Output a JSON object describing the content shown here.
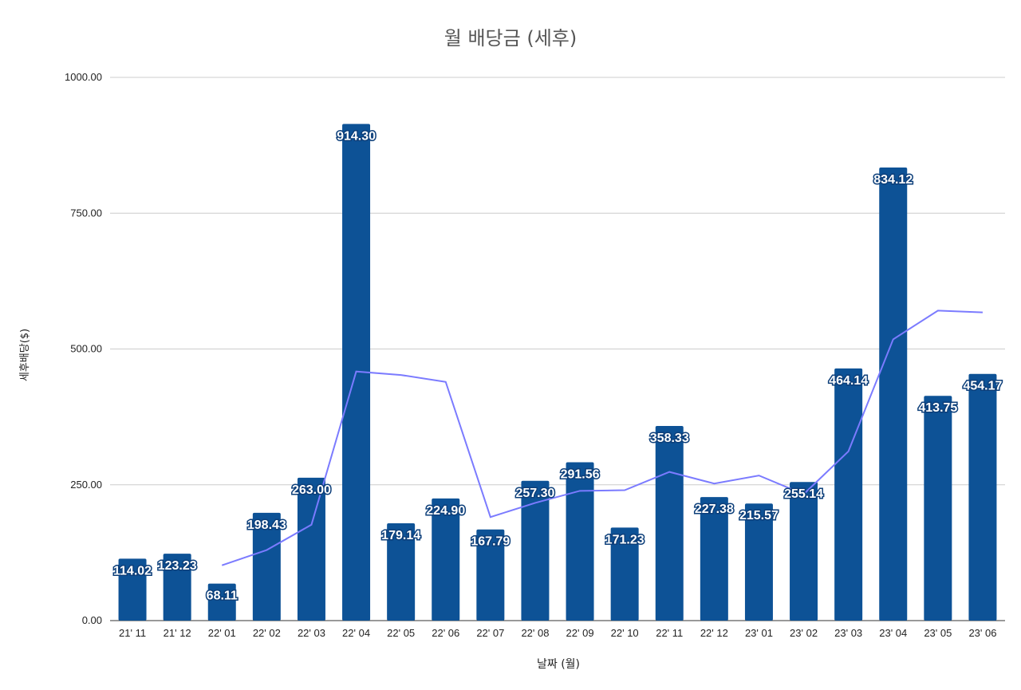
{
  "chart_data": {
    "type": "bar",
    "title": "월 배당금 (세후)",
    "xlabel": "날짜 (월)",
    "ylabel": "세후배당($)",
    "ylim": [
      0,
      1000
    ],
    "yticks": [
      "0.00",
      "250.00",
      "500.00",
      "750.00",
      "1000.00"
    ],
    "grid": true,
    "categories": [
      "21' 11",
      "21' 12",
      "22' 01",
      "22' 02",
      "22' 03",
      "22' 04",
      "22' 05",
      "22' 06",
      "22' 07",
      "22' 08",
      "22' 09",
      "22' 10",
      "22' 11",
      "22' 12",
      "23' 01",
      "23' 02",
      "23' 03",
      "23' 04",
      "23' 05",
      "23' 06"
    ],
    "series": [
      {
        "type": "bar",
        "color": "#0d5296",
        "values": [
          114.02,
          123.23,
          68.11,
          198.43,
          263.0,
          914.3,
          179.14,
          224.9,
          167.79,
          257.3,
          291.56,
          171.23,
          358.33,
          227.38,
          215.57,
          255.14,
          464.14,
          834.12,
          413.75,
          454.17
        ],
        "labels": [
          "114.02",
          "123.23",
          "68.11",
          "198.43",
          "263.00",
          "914.30",
          "179.14",
          "224.90",
          "167.79",
          "257.30",
          "291.56",
          "171.23",
          "358.33",
          "227.38",
          "215.57",
          "255.14",
          "464.14",
          "834.12",
          "413.75",
          "454.17"
        ]
      },
      {
        "type": "line",
        "color": "#7b7bff",
        "values": [
          null,
          null,
          101.79,
          129.92,
          176.52,
          458.58,
          452.15,
          439.45,
          190.61,
          216.66,
          238.88,
          240.03,
          273.71,
          252.31,
          267.09,
          232.7,
          311.62,
          517.8,
          570.67,
          567.35
        ]
      }
    ]
  }
}
